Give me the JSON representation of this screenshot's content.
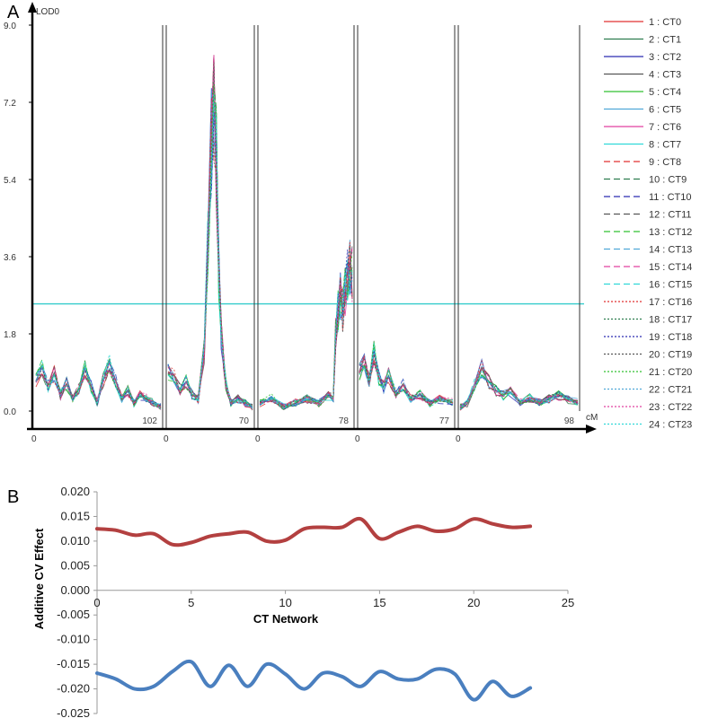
{
  "panel_a_letter": "A",
  "panel_b_letter": "B",
  "chart_data": [
    {
      "type": "line",
      "panel": "A",
      "ylabel": "LOD0",
      "xlabel": "cM",
      "ylim": [
        0,
        9.0
      ],
      "y_ticks": [
        "0.0",
        "1.8",
        "3.6",
        "5.4",
        "7.2",
        "9.0"
      ],
      "threshold": 2.5,
      "threshold_color": "#33cccc",
      "chromosomes": [
        {
          "start_label": "0",
          "length_label": "102",
          "length": 102,
          "profile": [
            [
              0,
              0.8
            ],
            [
              5,
              1.0
            ],
            [
              10,
              0.6
            ],
            [
              15,
              0.9
            ],
            [
              20,
              0.4
            ],
            [
              25,
              0.7
            ],
            [
              30,
              0.3
            ],
            [
              35,
              0.5
            ],
            [
              40,
              1.0
            ],
            [
              45,
              0.6
            ],
            [
              50,
              0.2
            ],
            [
              55,
              0.8
            ],
            [
              60,
              1.1
            ],
            [
              65,
              0.7
            ],
            [
              70,
              0.3
            ],
            [
              75,
              0.5
            ],
            [
              80,
              0.2
            ],
            [
              85,
              0.4
            ],
            [
              90,
              0.3
            ],
            [
              95,
              0.2
            ],
            [
              102,
              0.1
            ]
          ]
        },
        {
          "start_label": "0",
          "length_label": "70",
          "length": 70,
          "profile": [
            [
              0,
              1.0
            ],
            [
              5,
              0.8
            ],
            [
              10,
              0.5
            ],
            [
              15,
              0.7
            ],
            [
              20,
              0.4
            ],
            [
              25,
              0.3
            ],
            [
              30,
              1.5
            ],
            [
              33,
              4.0
            ],
            [
              36,
              6.5
            ],
            [
              38,
              7.5
            ],
            [
              40,
              6.2
            ],
            [
              42,
              3.5
            ],
            [
              44,
              2.0
            ],
            [
              46,
              1.2
            ],
            [
              48,
              0.6
            ],
            [
              52,
              0.2
            ],
            [
              58,
              0.3
            ],
            [
              64,
              0.2
            ],
            [
              70,
              0.1
            ]
          ]
        },
        {
          "start_label": "0",
          "length_label": "78",
          "length": 78,
          "profile": [
            [
              0,
              0.2
            ],
            [
              10,
              0.3
            ],
            [
              20,
              0.1
            ],
            [
              30,
              0.2
            ],
            [
              40,
              0.3
            ],
            [
              50,
              0.2
            ],
            [
              58,
              0.4
            ],
            [
              62,
              0.3
            ],
            [
              64,
              1.8
            ],
            [
              66,
              2.4
            ],
            [
              68,
              2.8
            ],
            [
              70,
              2.5
            ],
            [
              72,
              3.0
            ],
            [
              74,
              3.2
            ],
            [
              76,
              3.4
            ],
            [
              78,
              3.3
            ]
          ]
        },
        {
          "start_label": "0",
          "length_label": "77",
          "length": 77,
          "profile": [
            [
              0,
              1.0
            ],
            [
              4,
              1.2
            ],
            [
              8,
              0.7
            ],
            [
              12,
              1.4
            ],
            [
              16,
              0.8
            ],
            [
              20,
              0.6
            ],
            [
              24,
              0.9
            ],
            [
              30,
              0.4
            ],
            [
              36,
              0.6
            ],
            [
              42,
              0.3
            ],
            [
              50,
              0.4
            ],
            [
              58,
              0.2
            ],
            [
              66,
              0.3
            ],
            [
              77,
              0.2
            ]
          ]
        },
        {
          "start_label": "0",
          "length_label": "98",
          "length": 98,
          "profile": [
            [
              0,
              0.1
            ],
            [
              6,
              0.2
            ],
            [
              12,
              0.6
            ],
            [
              18,
              1.0
            ],
            [
              24,
              0.7
            ],
            [
              30,
              0.5
            ],
            [
              36,
              0.4
            ],
            [
              42,
              0.5
            ],
            [
              50,
              0.2
            ],
            [
              58,
              0.3
            ],
            [
              66,
              0.2
            ],
            [
              74,
              0.3
            ],
            [
              82,
              0.4
            ],
            [
              90,
              0.3
            ],
            [
              98,
              0.2
            ]
          ]
        }
      ],
      "legend": {
        "placement": "right",
        "entries": [
          {
            "label": "1 : CT0",
            "color": "#e03030",
            "dash": "solid"
          },
          {
            "label": "2 : CT1",
            "color": "#2e7d4f",
            "dash": "solid"
          },
          {
            "label": "3 : CT2",
            "color": "#2b2bb0",
            "dash": "solid"
          },
          {
            "label": "4 : CT3",
            "color": "#555555",
            "dash": "solid"
          },
          {
            "label": "5 : CT4",
            "color": "#30c030",
            "dash": "solid"
          },
          {
            "label": "6 : CT5",
            "color": "#50a8d8",
            "dash": "solid"
          },
          {
            "label": "7 : CT6",
            "color": "#e040a0",
            "dash": "solid"
          },
          {
            "label": "8 : CT7",
            "color": "#30d8d8",
            "dash": "solid"
          },
          {
            "label": "9 : CT8",
            "color": "#e03030",
            "dash": "long"
          },
          {
            "label": "10 : CT9",
            "color": "#2e7d4f",
            "dash": "long"
          },
          {
            "label": "11 : CT10",
            "color": "#2b2bb0",
            "dash": "long"
          },
          {
            "label": "12 : CT11",
            "color": "#555555",
            "dash": "long"
          },
          {
            "label": "13 : CT12",
            "color": "#30c030",
            "dash": "long"
          },
          {
            "label": "14 : CT13",
            "color": "#50a8d8",
            "dash": "long"
          },
          {
            "label": "15 : CT14",
            "color": "#e040a0",
            "dash": "long"
          },
          {
            "label": "16 : CT15",
            "color": "#30d8d8",
            "dash": "long"
          },
          {
            "label": "17 : CT16",
            "color": "#e03030",
            "dash": "short"
          },
          {
            "label": "18 : CT17",
            "color": "#2e7d4f",
            "dash": "short"
          },
          {
            "label": "19 : CT18",
            "color": "#2b2bb0",
            "dash": "short"
          },
          {
            "label": "20 : CT19",
            "color": "#555555",
            "dash": "short"
          },
          {
            "label": "21 : CT20",
            "color": "#30c030",
            "dash": "short"
          },
          {
            "label": "22 : CT21",
            "color": "#50a8d8",
            "dash": "short"
          },
          {
            "label": "23 : CT22",
            "color": "#e040a0",
            "dash": "short"
          },
          {
            "label": "24 : CT23",
            "color": "#30d8d8",
            "dash": "short"
          }
        ]
      }
    },
    {
      "type": "line",
      "panel": "B",
      "ylabel": "Additive CV Effect",
      "xlabel": "CT Network",
      "xlim": [
        0,
        25
      ],
      "x_ticks": [
        "0",
        "5",
        "10",
        "15",
        "20",
        "25"
      ],
      "ylim": [
        -0.025,
        0.02
      ],
      "y_ticks": [
        "0.020",
        "0.015",
        "0.010",
        "0.005",
        "0.000",
        "-0.005",
        "-0.010",
        "-0.015",
        "-0.020",
        "-0.025"
      ],
      "grid": false,
      "x": [
        0,
        1,
        2,
        3,
        4,
        5,
        6,
        7,
        8,
        9,
        10,
        11,
        12,
        13,
        14,
        15,
        16,
        17,
        18,
        19,
        20,
        21,
        22,
        23
      ],
      "series": [
        {
          "color": "#b34040",
          "values": [
            0.0125,
            0.0122,
            0.0112,
            0.0115,
            0.0093,
            0.0097,
            0.011,
            0.0115,
            0.0118,
            0.01,
            0.0102,
            0.0125,
            0.0128,
            0.0128,
            0.0145,
            0.0105,
            0.0118,
            0.013,
            0.012,
            0.0125,
            0.0145,
            0.0135,
            0.0128,
            0.013
          ]
        },
        {
          "color": "#4a7fbf",
          "values": [
            -0.0168,
            -0.018,
            -0.02,
            -0.0195,
            -0.0165,
            -0.0145,
            -0.0195,
            -0.0152,
            -0.0195,
            -0.015,
            -0.017,
            -0.02,
            -0.0168,
            -0.0175,
            -0.0195,
            -0.0165,
            -0.018,
            -0.018,
            -0.016,
            -0.017,
            -0.0222,
            -0.0185,
            -0.0215,
            -0.0198
          ]
        }
      ]
    }
  ]
}
